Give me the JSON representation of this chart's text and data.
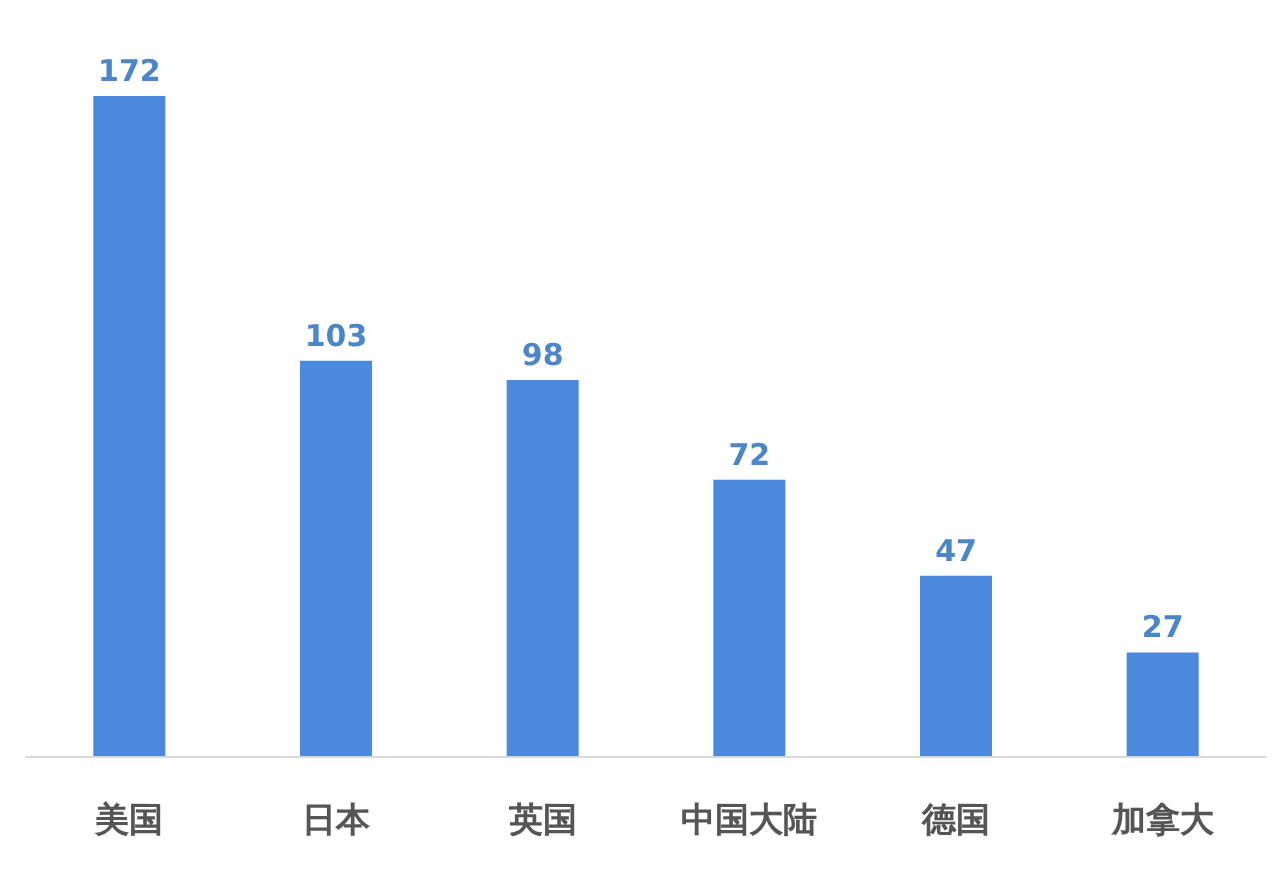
{
  "chart_data": {
    "type": "bar",
    "categories": [
      "美国",
      "日本",
      "英国",
      "中国大陆",
      "德国",
      "加拿大"
    ],
    "values": [
      172,
      103,
      98,
      72,
      47,
      27
    ],
    "color": "#4a89dc",
    "data_labels": true
  }
}
